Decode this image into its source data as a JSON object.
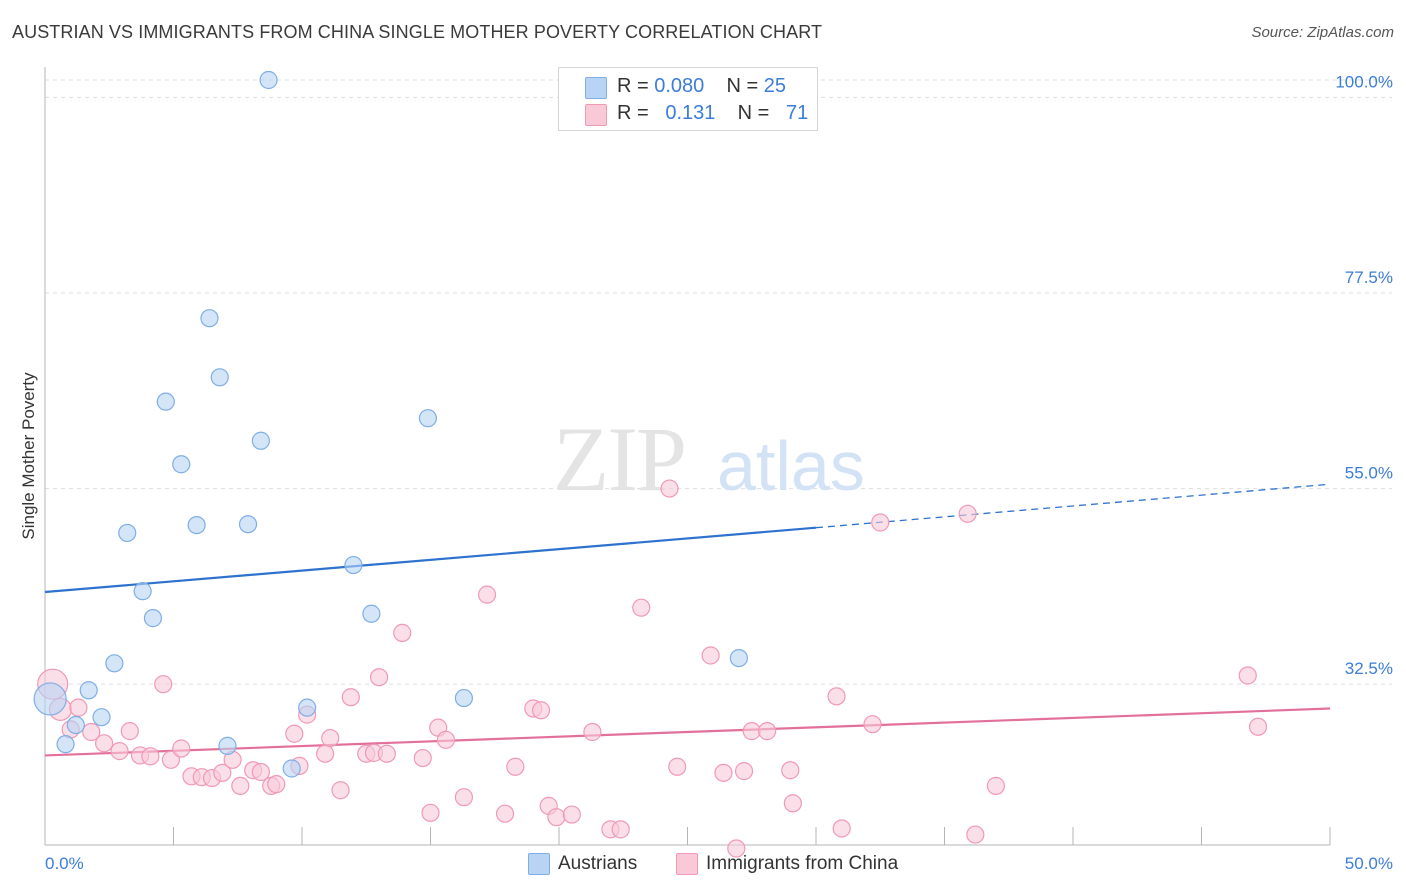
{
  "title": "AUSTRIAN VS IMMIGRANTS FROM CHINA SINGLE MOTHER POVERTY CORRELATION CHART",
  "source": "Source: ZipAtlas.com",
  "watermark": {
    "zip": "ZIP",
    "atlas": "atlas"
  },
  "legend_top": {
    "r1_label": "R = ",
    "r1_value": "0.080",
    "n1_label": "N = ",
    "n1_value": "25",
    "r2_label": "R = ",
    "r2_value": "0.131",
    "n2_label": "N = ",
    "n2_value": "71"
  },
  "legend_bottom": {
    "series1": "Austrians",
    "series2": "Immigrants from China"
  },
  "colors": {
    "blue_fill": "#b8d3f3",
    "blue_stroke": "#7faee6",
    "blue_line": "#2e72cf",
    "pink_fill": "#f9c9d8",
    "pink_stroke": "#f099b5",
    "pink_line": "#e3709a",
    "axis_label": "#3b7dd8",
    "grid": "#dddddd"
  },
  "chart_data": {
    "type": "scatter",
    "title": "AUSTRIAN VS IMMIGRANTS FROM CHINA SINGLE MOTHER POVERTY CORRELATION CHART",
    "xlabel": "",
    "ylabel": "Single Mother Poverty",
    "xlim": [
      0,
      50
    ],
    "ylim": [
      14,
      102
    ],
    "x_tick_labels": [
      "0.0%",
      "50.0%"
    ],
    "y_ticks": [
      32.5,
      55.0,
      77.5,
      100.0
    ],
    "y_tick_labels": [
      "32.5%",
      "55.0%",
      "77.5%",
      "100.0%"
    ],
    "grid": true,
    "legend_position": "top-center",
    "series": [
      {
        "name": "Austrians",
        "R": 0.08,
        "N": 25,
        "points": [
          [
            8.7,
            102.0
          ],
          [
            6.4,
            74.6
          ],
          [
            6.8,
            67.8
          ],
          [
            4.7,
            65.0
          ],
          [
            8.4,
            60.5
          ],
          [
            14.9,
            63.1
          ],
          [
            5.3,
            57.8
          ],
          [
            3.2,
            49.9
          ],
          [
            5.9,
            50.8
          ],
          [
            7.9,
            50.9
          ],
          [
            12.0,
            46.2
          ],
          [
            3.8,
            43.2
          ],
          [
            4.2,
            40.1
          ],
          [
            12.7,
            40.6
          ],
          [
            2.7,
            34.9
          ],
          [
            27.0,
            35.5
          ],
          [
            1.7,
            31.8
          ],
          [
            16.3,
            30.9
          ],
          [
            10.2,
            29.8
          ],
          [
            2.2,
            28.7
          ],
          [
            1.2,
            27.8
          ],
          [
            0.8,
            25.6
          ],
          [
            7.1,
            25.4
          ],
          [
            9.6,
            22.8
          ],
          [
            0.2,
            30.8
          ]
        ],
        "trend": {
          "x": [
            0,
            30
          ],
          "y": [
            43.1,
            50.5
          ],
          "dashed_to": [
            50,
            55.5
          ]
        }
      },
      {
        "name": "Immigrants from China",
        "R": 0.131,
        "N": 71,
        "points": [
          [
            0.3,
            32.5
          ],
          [
            0.6,
            29.6
          ],
          [
            1.3,
            29.8
          ],
          [
            1.0,
            27.3
          ],
          [
            1.8,
            27.0
          ],
          [
            2.3,
            25.7
          ],
          [
            2.9,
            24.8
          ],
          [
            3.3,
            27.1
          ],
          [
            3.7,
            24.3
          ],
          [
            4.1,
            24.2
          ],
          [
            4.6,
            32.5
          ],
          [
            4.9,
            23.8
          ],
          [
            5.3,
            25.1
          ],
          [
            5.7,
            21.9
          ],
          [
            6.1,
            21.8
          ],
          [
            6.5,
            21.7
          ],
          [
            6.9,
            22.3
          ],
          [
            7.3,
            23.8
          ],
          [
            7.6,
            20.8
          ],
          [
            8.1,
            22.6
          ],
          [
            8.4,
            22.4
          ],
          [
            8.8,
            20.8
          ],
          [
            9.0,
            21.0
          ],
          [
            9.7,
            26.8
          ],
          [
            9.9,
            23.1
          ],
          [
            10.2,
            29.0
          ],
          [
            10.9,
            24.5
          ],
          [
            11.1,
            26.3
          ],
          [
            11.5,
            20.3
          ],
          [
            11.9,
            31.0
          ],
          [
            12.5,
            24.5
          ],
          [
            12.8,
            24.6
          ],
          [
            13.0,
            33.3
          ],
          [
            13.3,
            24.5
          ],
          [
            13.9,
            38.4
          ],
          [
            14.7,
            24.0
          ],
          [
            15.0,
            17.7
          ],
          [
            15.3,
            27.5
          ],
          [
            15.6,
            26.1
          ],
          [
            16.3,
            19.5
          ],
          [
            17.2,
            42.8
          ],
          [
            17.9,
            17.6
          ],
          [
            18.3,
            23.0
          ],
          [
            19.0,
            29.7
          ],
          [
            19.3,
            29.5
          ],
          [
            19.6,
            18.5
          ],
          [
            19.9,
            17.2
          ],
          [
            20.5,
            17.5
          ],
          [
            21.3,
            27.0
          ],
          [
            22.0,
            15.8
          ],
          [
            22.4,
            15.8
          ],
          [
            23.2,
            41.3
          ],
          [
            24.3,
            55.0
          ],
          [
            25.9,
            35.8
          ],
          [
            26.4,
            22.3
          ],
          [
            26.9,
            13.6
          ],
          [
            27.2,
            22.5
          ],
          [
            27.5,
            27.1
          ],
          [
            28.1,
            27.1
          ],
          [
            29.0,
            22.6
          ],
          [
            29.1,
            18.8
          ],
          [
            30.8,
            31.1
          ],
          [
            31.0,
            15.9
          ],
          [
            32.5,
            51.1
          ],
          [
            35.9,
            52.1
          ],
          [
            36.2,
            15.2
          ],
          [
            37.0,
            20.8
          ],
          [
            46.8,
            33.5
          ],
          [
            47.2,
            27.6
          ],
          [
            32.2,
            27.9
          ],
          [
            24.6,
            23.0
          ]
        ],
        "trend": {
          "x": [
            0,
            50
          ],
          "y": [
            24.3,
            29.7
          ]
        }
      }
    ]
  }
}
